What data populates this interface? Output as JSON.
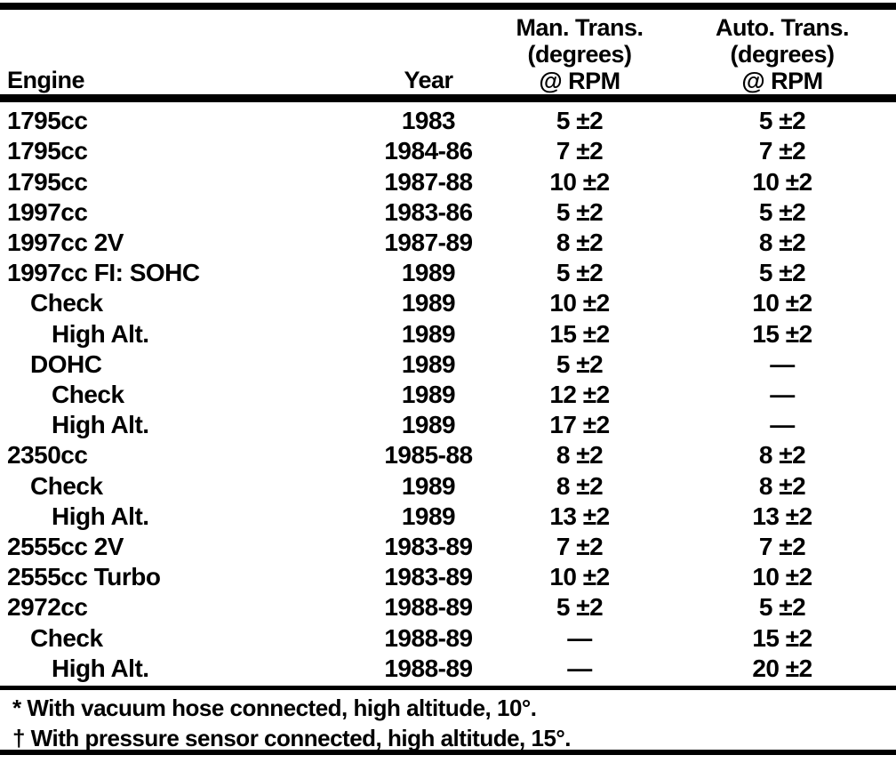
{
  "colors": {
    "ink": "#000000",
    "paper": "#ffffff"
  },
  "table": {
    "header": {
      "engine": "Engine",
      "year": "Year",
      "man_trans_lines": [
        "Man. Trans.",
        "(degrees)",
        "@ RPM"
      ],
      "auto_trans_lines": [
        "Auto. Trans.",
        "(degrees)",
        "@ RPM"
      ]
    },
    "rows": [
      {
        "engine": "1795cc",
        "indent": 0,
        "year": "1983",
        "man_trans": "5 ±2",
        "auto_trans": "5 ±2"
      },
      {
        "engine": "1795cc",
        "indent": 0,
        "year": "1984-86",
        "man_trans": "7 ±2",
        "auto_trans": "7 ±2"
      },
      {
        "engine": "1795cc",
        "indent": 0,
        "year": "1987-88",
        "man_trans": "10 ±2",
        "auto_trans": "10 ±2"
      },
      {
        "engine": "1997cc",
        "indent": 0,
        "year": "1983-86",
        "man_trans": "5 ±2",
        "auto_trans": "5 ±2"
      },
      {
        "engine": "1997cc 2V",
        "indent": 0,
        "year": "1987-89",
        "man_trans": "8 ±2",
        "auto_trans": "8 ±2"
      },
      {
        "engine": "1997cc FI: SOHC",
        "indent": 0,
        "year": "1989",
        "man_trans": "5 ±2",
        "auto_trans": "5 ±2"
      },
      {
        "engine": "Check",
        "indent": 1,
        "year": "1989",
        "man_trans": "10 ±2",
        "auto_trans": "10 ±2"
      },
      {
        "engine": "High Alt.",
        "indent": 2,
        "year": "1989",
        "man_trans": "15 ±2",
        "auto_trans": "15 ±2"
      },
      {
        "engine": "DOHC",
        "indent": 1,
        "year": "1989",
        "man_trans": "5 ±2",
        "auto_trans": "—"
      },
      {
        "engine": "Check",
        "indent": 2,
        "year": "1989",
        "man_trans": "12 ±2",
        "auto_trans": "—"
      },
      {
        "engine": "High Alt.",
        "indent": 2,
        "year": "1989",
        "man_trans": "17 ±2",
        "auto_trans": "—"
      },
      {
        "engine": "2350cc",
        "indent": 0,
        "year": "1985-88",
        "man_trans": "8 ±2",
        "auto_trans": "8 ±2"
      },
      {
        "engine": "Check",
        "indent": 1,
        "year": "1989",
        "man_trans": "8 ±2",
        "auto_trans": "8 ±2"
      },
      {
        "engine": "High Alt.",
        "indent": 2,
        "year": "1989",
        "man_trans": "13 ±2",
        "auto_trans": "13 ±2"
      },
      {
        "engine": "2555cc 2V",
        "indent": 0,
        "year": "1983-89",
        "man_trans": "7 ±2",
        "auto_trans": "7 ±2"
      },
      {
        "engine": "2555cc Turbo",
        "indent": 0,
        "year": "1983-89",
        "man_trans": "10 ±2",
        "auto_trans": "10 ±2"
      },
      {
        "engine": "2972cc",
        "indent": 0,
        "year": "1988-89",
        "man_trans": "5 ±2",
        "auto_trans": "5 ±2"
      },
      {
        "engine": "Check",
        "indent": 1,
        "year": "1988-89",
        "man_trans": "—",
        "auto_trans": "15 ±2"
      },
      {
        "engine": "High Alt.",
        "indent": 2,
        "year": "1988-89",
        "man_trans": "—",
        "auto_trans": "20 ±2"
      }
    ],
    "footnotes": [
      "* With vacuum hose connected, high altitude, 10°.",
      "† With pressure sensor connected, high altitude, 15°."
    ]
  }
}
